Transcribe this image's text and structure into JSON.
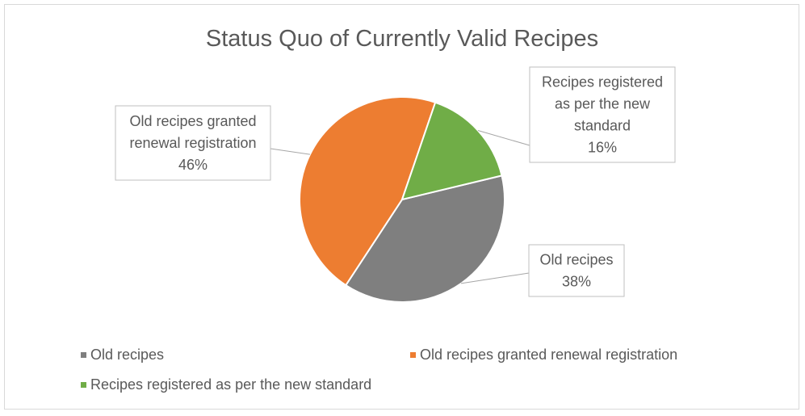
{
  "chart_data": {
    "type": "pie",
    "title": "Status Quo of Currently Valid Recipes",
    "slices": [
      {
        "label": "Old recipes",
        "value": 38,
        "percent_label": "38%",
        "color": "#7f7f7f",
        "callout_lines": [
          "Old recipes",
          "38%"
        ]
      },
      {
        "label": "Old recipes granted renewal registration",
        "value": 46,
        "percent_label": "46%",
        "color": "#ed7d31",
        "callout_lines": [
          "Old recipes granted",
          "renewal registration",
          "46%"
        ]
      },
      {
        "label": "Recipes registered as per the new standard",
        "value": 16,
        "percent_label": "16%",
        "color": "#70ad47",
        "callout_lines": [
          "Recipes registered",
          "as per the new",
          "standard",
          "16%"
        ]
      }
    ],
    "legend_position": "bottom",
    "legend": [
      "Old recipes",
      "Old recipes granted renewal registration",
      "Recipes registered as per the new standard"
    ]
  }
}
